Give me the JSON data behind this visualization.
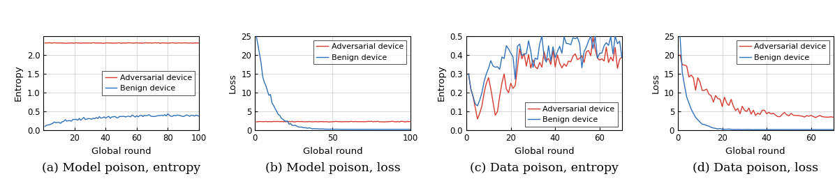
{
  "panel_a": {
    "title": "(a) Model poison, entropy",
    "xlabel": "Global round",
    "ylabel": "Entropy",
    "xlim": [
      0,
      100
    ],
    "ylim": [
      0,
      2.5
    ],
    "yticks": [
      0,
      0.5,
      1.0,
      1.5,
      2.0
    ],
    "xticks": [
      20,
      40,
      60,
      80,
      100
    ],
    "adversarial_value": 2.32,
    "adv_color": "#d63b2f",
    "ben_color": "#3070b8",
    "legend_loc": "center right"
  },
  "panel_b": {
    "title": "(b) Model poison, loss",
    "xlabel": "Global round",
    "ylabel": "Loss",
    "xlim": [
      0,
      100
    ],
    "ylim": [
      0,
      25
    ],
    "yticks": [
      0,
      5,
      10,
      15,
      20,
      25
    ],
    "xticks": [
      0,
      50,
      100
    ],
    "adversarial_value": 2.3,
    "adv_color": "#d63b2f",
    "ben_color": "#3070b8",
    "legend_loc": "upper right"
  },
  "panel_c": {
    "title": "(c) Data poison, entropy",
    "xlabel": "Global round",
    "ylabel": "Entropy",
    "xlim": [
      0,
      70
    ],
    "ylim": [
      0,
      0.5
    ],
    "yticks": [
      0,
      0.1,
      0.2,
      0.3,
      0.4,
      0.5
    ],
    "xticks": [
      0,
      20,
      40,
      60
    ],
    "adv_color": "#d63b2f",
    "ben_color": "#3070b8",
    "legend_loc": "lower right"
  },
  "panel_d": {
    "title": "(d) Data poison, loss",
    "xlabel": "Global round",
    "ylabel": "Loss",
    "xlim": [
      0,
      70
    ],
    "ylim": [
      0,
      25
    ],
    "yticks": [
      0,
      5,
      10,
      15,
      20,
      25
    ],
    "xticks": [
      0,
      20,
      40,
      60
    ],
    "adv_color": "#d63b2f",
    "ben_color": "#3070b8",
    "legend_loc": "upper right"
  },
  "adv_label": "Adversarial device",
  "ben_label": "Benign device",
  "caption_fontsize": 12.5,
  "axis_label_fontsize": 9.5,
  "tick_fontsize": 8.5,
  "legend_fontsize": 8.0,
  "line_width": 1.0,
  "grid_color": "#c8c8c8",
  "grid_lw": 0.5
}
